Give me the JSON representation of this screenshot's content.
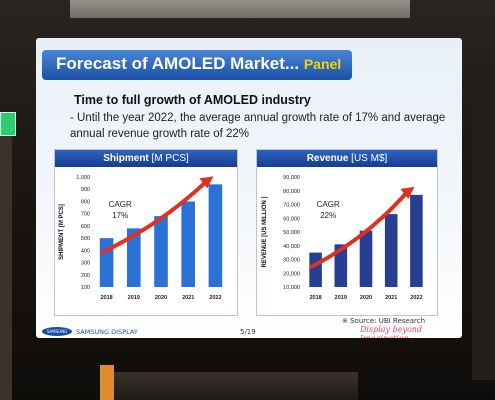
{
  "slide": {
    "title": "Forecast of AMOLED Market...",
    "title_tag": "Panel",
    "heading": "Time to full growth of AMOLED industry",
    "bullet": "- Until the year 2022, the average annual growth rate of 17% and average annual revenue growth rate of 22%",
    "source": "※ Source: UBI Research",
    "company": "SAMSUNG DISPLAY",
    "logo_text": "SAMSUNG",
    "page": "5/19",
    "tagline": "Display beyond Imagination"
  },
  "colors": {
    "bar": "#2b72d6",
    "bar_revenue": "#263f93",
    "arrow": "#e0301e",
    "header": "#1b4fa6"
  },
  "chart_data": [
    {
      "type": "bar",
      "title": "Shipment",
      "unit": "[M PCS]",
      "ylabel": "SHIPMENT [M PCS]",
      "categories": [
        "2018",
        "2019",
        "2020",
        "2021",
        "2022"
      ],
      "values": [
        500,
        580,
        680,
        800,
        940
      ],
      "yticks": [
        "100",
        "200",
        "300",
        "400",
        "500",
        "600",
        "700",
        "800",
        "900",
        "1,000"
      ],
      "ylim": [
        100,
        1000
      ],
      "annotation": "CAGR",
      "annotation_value": "17%",
      "trend_arrow": true,
      "grid": false
    },
    {
      "type": "bar",
      "title": "Revenue",
      "unit": "[US M$]",
      "ylabel": "REVENUE [US MILLION ]",
      "categories": [
        "2018",
        "2019",
        "2020",
        "2021",
        "2022"
      ],
      "values": [
        35000,
        41000,
        51000,
        63000,
        77000
      ],
      "yticks": [
        "10,000",
        "20,000",
        "30,000",
        "40,000",
        "50,000",
        "60,000",
        "70,000",
        "80,000",
        "90,000"
      ],
      "ylim": [
        10000,
        90000
      ],
      "annotation": "CAGR",
      "annotation_value": "22%",
      "trend_arrow": true,
      "grid": false
    }
  ]
}
